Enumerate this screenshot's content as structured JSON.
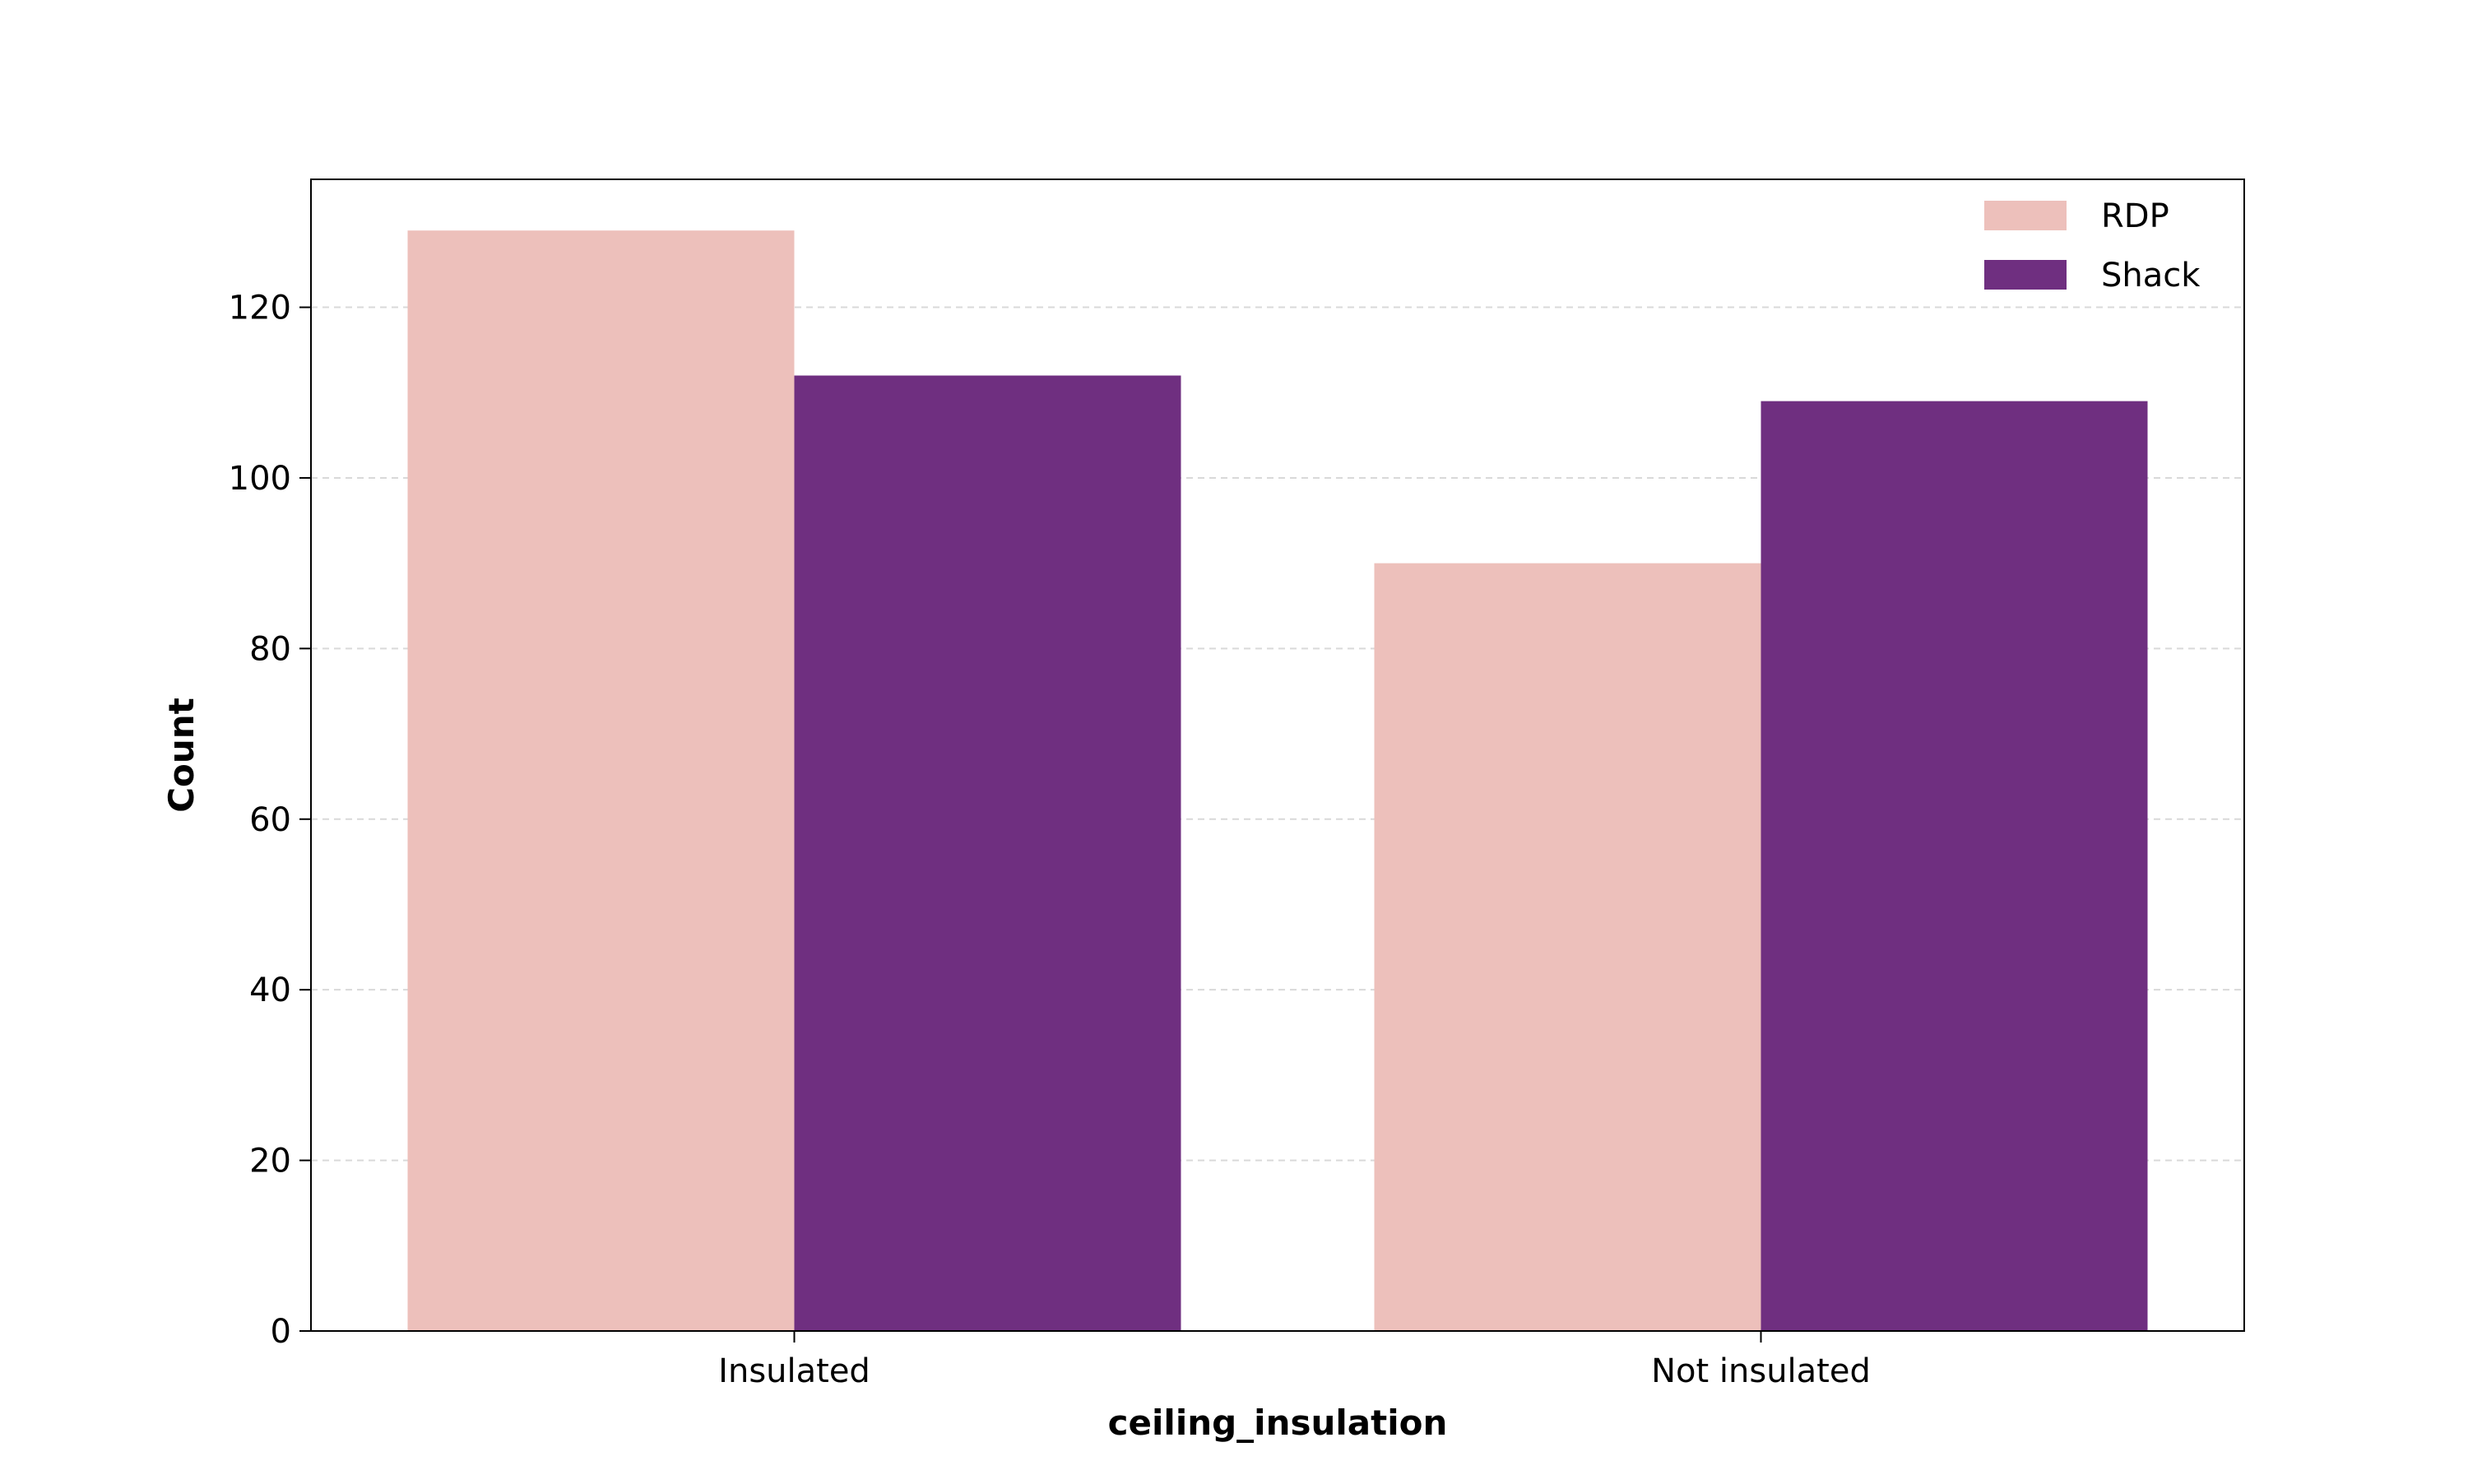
{
  "chart_data": {
    "type": "bar",
    "xlabel": "ceiling_insulation",
    "ylabel": "Count",
    "categories": [
      "Insulated",
      "Not insulated"
    ],
    "series": [
      {
        "name": "RDP",
        "values": [
          129,
          90
        ],
        "color": "#edc0bb"
      },
      {
        "name": "Shack",
        "values": [
          112,
          109
        ],
        "color": "#6f2f80"
      }
    ],
    "ylim": [
      0,
      135
    ],
    "yticks": [
      0,
      20,
      40,
      60,
      80,
      100,
      120
    ],
    "grid": true,
    "grid_axis": "y",
    "grid_style": "dashed",
    "legend_position": "top-right"
  }
}
